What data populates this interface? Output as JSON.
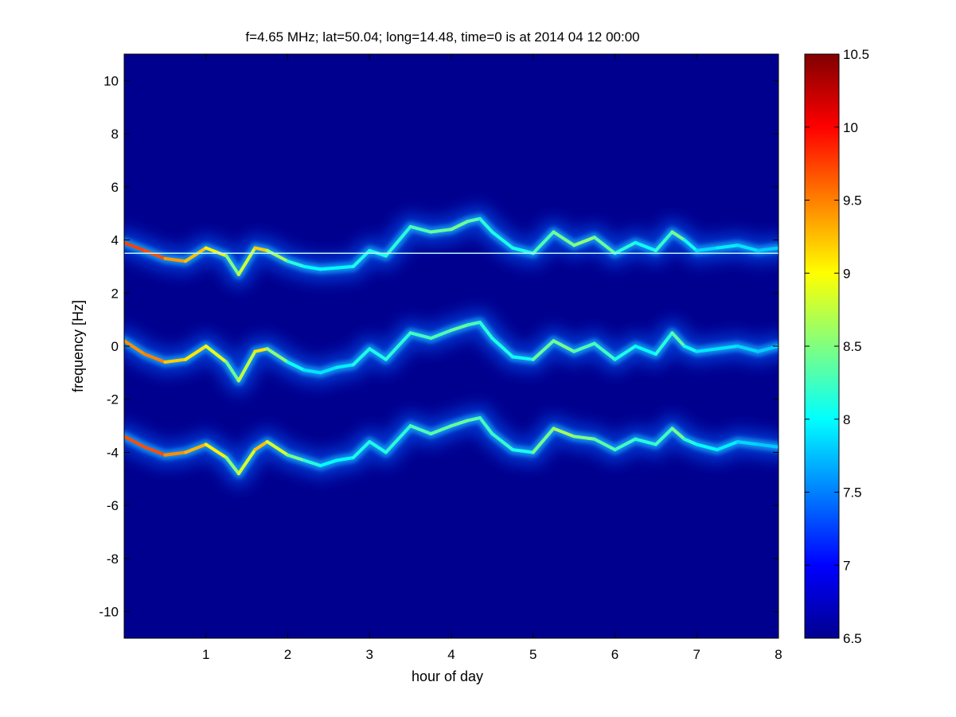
{
  "colors": {
    "background": "#ffffff",
    "axes_bg": "#00008f",
    "colormap": [
      "#00008f",
      "#0000ff",
      "#0080ff",
      "#00ffff",
      "#80ff80",
      "#ffff00",
      "#ff8000",
      "#ff0000",
      "#800000"
    ]
  },
  "chart_data": {
    "type": "heatmap",
    "title": "f=4.65 MHz;  lat=50.04; long=14.48, time=0 is at 2014 04 12 00:00",
    "xlabel": "hour of day",
    "ylabel": "frequency [Hz]",
    "xlim": [
      0,
      8
    ],
    "ylim": [
      -11,
      11
    ],
    "x_ticks": [
      1,
      2,
      3,
      4,
      5,
      6,
      7,
      8
    ],
    "y_ticks": [
      -10,
      -8,
      -6,
      -4,
      -2,
      0,
      2,
      4,
      6,
      8,
      10
    ],
    "colorbar": {
      "clim": [
        6.5,
        10.5
      ],
      "ticks": [
        6.5,
        7,
        7.5,
        8,
        8.5,
        9,
        9.5,
        10,
        10.5
      ],
      "colormap": "jet"
    },
    "reference_line": {
      "y": 3.5
    },
    "traces": [
      {
        "x": [
          0.0,
          0.25,
          0.5,
          0.75,
          1.0,
          1.25,
          1.4,
          1.6,
          1.75,
          2.0,
          2.2,
          2.4,
          2.6,
          2.8,
          3.0,
          3.2,
          3.5,
          3.75,
          4.0,
          4.2,
          4.35,
          4.5,
          4.75,
          5.0,
          5.25,
          5.5,
          5.75,
          6.0,
          6.25,
          6.5,
          6.7,
          6.85,
          7.0,
          7.25,
          7.5,
          7.75,
          8.0
        ],
        "y": [
          3.9,
          3.6,
          3.3,
          3.2,
          3.7,
          3.4,
          2.7,
          3.7,
          3.6,
          3.2,
          3.0,
          2.9,
          2.95,
          3.0,
          3.6,
          3.4,
          4.5,
          4.3,
          4.4,
          4.7,
          4.8,
          4.3,
          3.7,
          3.5,
          4.3,
          3.8,
          4.1,
          3.5,
          3.9,
          3.6,
          4.3,
          4.0,
          3.6,
          3.7,
          3.8,
          3.6,
          3.7
        ],
        "intensity": [
          9.7,
          9.8,
          9.6,
          9.2,
          9.3,
          8.8,
          8.2,
          9.4,
          9.0,
          8.3,
          8.0,
          8.0,
          8.0,
          8.0,
          8.2,
          8.0,
          8.3,
          8.3,
          8.5,
          8.4,
          8.3,
          8.0,
          8.2,
          8.0,
          8.6,
          8.3,
          8.8,
          8.0,
          8.3,
          7.8,
          8.6,
          8.3,
          7.8,
          7.9,
          8.0,
          7.8,
          7.8
        ]
      },
      {
        "x": [
          0.0,
          0.25,
          0.5,
          0.75,
          1.0,
          1.25,
          1.4,
          1.6,
          1.75,
          2.0,
          2.2,
          2.4,
          2.6,
          2.8,
          3.0,
          3.2,
          3.5,
          3.75,
          4.0,
          4.2,
          4.35,
          4.5,
          4.75,
          5.0,
          5.25,
          5.5,
          5.75,
          6.0,
          6.25,
          6.5,
          6.7,
          6.85,
          7.0,
          7.25,
          7.5,
          7.75,
          8.0
        ],
        "y": [
          0.2,
          -0.3,
          -0.6,
          -0.5,
          0.0,
          -0.6,
          -1.3,
          -0.2,
          -0.1,
          -0.6,
          -0.9,
          -1.0,
          -0.8,
          -0.7,
          -0.1,
          -0.5,
          0.5,
          0.3,
          0.6,
          0.8,
          0.9,
          0.3,
          -0.4,
          -0.5,
          0.2,
          -0.2,
          0.1,
          -0.5,
          0.0,
          -0.3,
          0.5,
          0.0,
          -0.2,
          -0.1,
          0.0,
          -0.2,
          0.0
        ],
        "intensity": [
          9.3,
          9.6,
          9.4,
          9.0,
          9.2,
          8.6,
          8.2,
          9.3,
          8.9,
          8.2,
          7.9,
          7.9,
          7.9,
          8.0,
          8.2,
          8.0,
          8.3,
          8.2,
          8.4,
          8.4,
          8.2,
          8.1,
          8.1,
          8.0,
          8.8,
          8.1,
          8.5,
          8.0,
          8.2,
          7.8,
          8.5,
          8.2,
          7.9,
          7.9,
          7.9,
          7.8,
          7.8
        ]
      },
      {
        "x": [
          0.0,
          0.25,
          0.5,
          0.75,
          1.0,
          1.25,
          1.4,
          1.6,
          1.75,
          2.0,
          2.2,
          2.4,
          2.6,
          2.8,
          3.0,
          3.2,
          3.5,
          3.75,
          4.0,
          4.2,
          4.35,
          4.5,
          4.75,
          5.0,
          5.25,
          5.5,
          5.75,
          6.0,
          6.25,
          6.5,
          6.7,
          6.85,
          7.0,
          7.25,
          7.5,
          7.75,
          8.0
        ],
        "y": [
          -3.4,
          -3.8,
          -4.1,
          -4.0,
          -3.7,
          -4.2,
          -4.8,
          -3.9,
          -3.6,
          -4.1,
          -4.3,
          -4.5,
          -4.3,
          -4.2,
          -3.6,
          -4.0,
          -3.0,
          -3.3,
          -3.0,
          -2.8,
          -2.7,
          -3.3,
          -3.9,
          -4.0,
          -3.1,
          -3.4,
          -3.5,
          -3.9,
          -3.5,
          -3.7,
          -3.1,
          -3.5,
          -3.7,
          -3.9,
          -3.6,
          -3.7,
          -3.8
        ],
        "intensity": [
          9.6,
          9.8,
          9.6,
          9.3,
          9.3,
          8.8,
          8.3,
          9.4,
          9.1,
          8.6,
          8.3,
          8.0,
          8.0,
          8.0,
          8.2,
          8.0,
          8.3,
          8.3,
          8.4,
          8.4,
          8.3,
          8.2,
          8.2,
          8.0,
          8.9,
          8.4,
          8.6,
          8.1,
          8.4,
          7.9,
          8.6,
          8.3,
          8.0,
          8.0,
          7.9,
          7.8,
          7.8
        ]
      }
    ]
  }
}
